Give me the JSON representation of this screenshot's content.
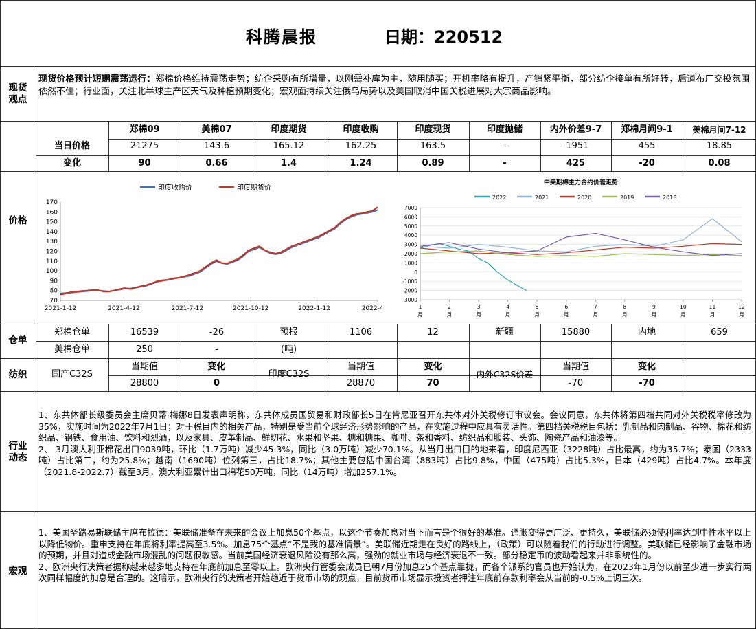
{
  "header": {
    "title": "科腾晨报",
    "date_label": "日期：220512"
  },
  "spot": {
    "label": [
      "现货",
      "观点"
    ],
    "lead": "现货价格预计短期震荡运行：",
    "text": "郑棉价格维持震荡走势；纺企采购有所增量，以刚需补库为主，随用随买；开机率略有提升，产销紧平衡，部分纺企接单有所好转，后道布厂交投氛围依然不佳；行业面，关注北半球主产区天气及种植预期变化；宏观面持续关注俄乌局势以及美国取消中国关税进展对大宗商品影响。"
  },
  "price": {
    "label": "价格",
    "headers": [
      "郑棉09",
      "美棉07",
      "印度期货",
      "印度收购",
      "印度现货",
      "印度抛储",
      "内外价差9-7",
      "郑棉月间9-1",
      "美棉月间7-12"
    ],
    "rows": [
      {
        "name": "当日价格",
        "values": [
          "21275",
          "143.6",
          "165.12",
          "162.25",
          "163.5",
          "-",
          "-1951",
          "455",
          "18.85"
        ]
      },
      {
        "name": "变化",
        "values": [
          "90",
          "0.66",
          "1.4",
          "1.24",
          "0.89",
          "-",
          "425",
          "-20",
          "0.08"
        ]
      }
    ]
  },
  "warehouse": {
    "label": "仓单",
    "row1": [
      "郑棉仓单",
      "16539",
      "-26",
      "预报",
      "1106",
      "12",
      "新疆",
      "15880",
      "内地",
      "659"
    ],
    "row2": [
      "美棉仓单",
      "250",
      "-",
      "(吨)"
    ]
  },
  "yarn": {
    "label": "纺织",
    "h_current": "当期值",
    "h_change": "变化",
    "items": [
      {
        "name": "国产C32S",
        "current": "28800",
        "change": "0"
      },
      {
        "name": "印度C32S",
        "current": "28870",
        "change": "70"
      },
      {
        "name": "内外C32S价差",
        "current": "-70",
        "change": "-70"
      }
    ]
  },
  "industry": {
    "label": [
      "行业",
      "动态"
    ],
    "p1": "1、东共体部长级委员会主席贝蒂·梅娜8日发表声明称，东共体成员国贸易和财政部长5日在肯尼亚召开东共体对外关税修订审议会。会议同意，东共体将第四档共同对外关税税率修改为35%，实施时间为2022年7月1日；对于税目内的相关产品，特别是受当前全球经济形势影响的产品，在实施过程中应具有灵活性。第四档关税税目包括：乳制品和肉制品、谷物、棉花和纺织品、钢铁、食用油、饮料和烈酒，以及家具、皮革制品、鲜切花、水果和坚果、糖和糖果、咖啡、茶和香料、纺织品和服装、头饰、陶瓷产品和油漆等。",
    "p2": "2、 3月澳大利亚棉花出口9039吨，环比（1.7万吨）减少45.3%，同比（3.0万吨）减少70.1%。从当月出口目的地来看，印度尼西亚（3228吨）占比最高，约为35.7%；泰国（2333吨）占比第二，约为25.8%；越南（1690吨）位列第三，占比18.7%；其他主要包括中国台湾（883吨）占比9.8%，中国（475吨）占比5.3%，日本（429吨）占比4.7%。本年度（2021.8-2022.7）截至3月，澳大利亚累计出口棉花50万吨，同比（14万吨）增加257.1%。"
  },
  "macro": {
    "label": "宏观",
    "p1": "1、美国圣路易斯联储主席布拉德：美联储准备在未来的会议上加息50个基点，以这个节奏加息对当下而言是个很好的基准。通胀变得更广泛、更持久，美联储必须使利率达到中性水平以上以降低物价。重申支持在年底将利率提高至3.5%。加息75个基点“不是我的基准情景”。美联储近期走在良好的路线上，（政策）可以随着我们的行动进行调整。美联储已经影响了金融市场的预期，并且对造成金融市场混乱的问题很敏感。当前美国经济衰退风险没有那么高，强劲的就业市场与经济衰退不一致。部分稳定币的波动看起来并非系统性的。",
    "p2": "2、欧洲央行决策者据称越来越多地支持在年底前加息至零以上。欧洲央行管委会成员已朝7月份加息25个基点靠拢，而各个派系的官员也开始认为，在2023年1月份以前至少进一步实行两次同样幅度的加息是合理的。这暗示，欧洲央行的决策者开始趋近于货币市场的观点，目前货币市场显示投资者押注年底前存款利率会从当前的-0.5%上调三次。"
  },
  "chart_data": [
    {
      "type": "line",
      "title": "",
      "legend_position": "top",
      "ylim": [
        70,
        170
      ],
      "yticks": [
        70,
        80,
        90,
        100,
        110,
        120,
        130,
        140,
        150,
        160,
        170
      ],
      "xticks": [
        "2021-1-12",
        "2021-4-12",
        "2021-7-12",
        "2021-10-12",
        "2022-1-12",
        "2022-4-12"
      ],
      "grid": false,
      "series": [
        {
          "name": "印度收购价",
          "color": "#3f6fb5",
          "values": [
            77,
            77.5,
            78,
            78.5,
            79,
            79.5,
            80,
            80,
            79.5,
            79,
            80,
            81,
            82,
            82,
            83,
            84,
            85,
            87,
            89,
            90,
            91,
            92,
            93,
            94,
            95,
            97,
            99,
            103,
            107,
            110,
            108,
            107,
            109,
            111,
            115,
            120,
            122,
            124,
            121,
            118,
            117,
            118,
            121,
            124,
            126,
            128,
            130,
            132,
            134,
            137,
            140,
            143,
            148,
            152,
            155,
            157,
            158,
            159,
            160,
            162
          ]
        },
        {
          "name": "印度期货价",
          "color": "#c0392b",
          "values": [
            76,
            77,
            78.5,
            79,
            79.5,
            80,
            80.5,
            80.5,
            79,
            79,
            80,
            81.5,
            82.5,
            81.5,
            83,
            84.5,
            85.5,
            87.5,
            89.5,
            90.5,
            91,
            92.5,
            93,
            94.5,
            96,
            98,
            100,
            104,
            108,
            111,
            108,
            107.5,
            110,
            112,
            116,
            121,
            123,
            125,
            121,
            119,
            117.5,
            119,
            122,
            125,
            127,
            129,
            131,
            133,
            135,
            138,
            141,
            144,
            149,
            153,
            156,
            158,
            158.5,
            160,
            161,
            165
          ]
        }
      ]
    },
    {
      "type": "line",
      "title": "中美期棉主力合约价差走势",
      "legend_position": "top",
      "ylim": [
        -3000,
        7000
      ],
      "yticks": [
        -3000,
        -2000,
        -1000,
        0,
        1000,
        2000,
        3000,
        4000,
        5000,
        6000,
        7000
      ],
      "xticks": [
        "1月",
        "2月",
        "3月",
        "4月",
        "5月",
        "6月",
        "7月",
        "8月",
        "9月",
        "10月",
        "11月",
        "12月"
      ],
      "grid": true,
      "series": [
        {
          "name": "2022",
          "color": "#2aa6b5",
          "values": [
            2600,
            2900,
            3100,
            2800,
            2500,
            2300,
            1500,
            1000,
            0,
            -800,
            -1400,
            -2000
          ]
        },
        {
          "name": "2021",
          "color": "#8fb3de",
          "values": [
            2800,
            2600,
            3000,
            2700,
            2300,
            2200,
            2800,
            3000,
            2800,
            3500,
            5800,
            3300
          ]
        },
        {
          "name": "2020",
          "color": "#c0392b",
          "values": [
            2600,
            2300,
            2000,
            2100,
            1900,
            2100,
            2400,
            2700,
            2600,
            2800,
            3100,
            3000
          ]
        },
        {
          "name": "2019",
          "color": "#9bbb59",
          "values": [
            2000,
            2200,
            2300,
            1900,
            1700,
            1800,
            1700,
            2000,
            1900,
            1800,
            1900,
            1800
          ]
        },
        {
          "name": "2018",
          "color": "#7a5ea8",
          "values": [
            2800,
            3200,
            2500,
            2100,
            2300,
            3800,
            4200,
            3500,
            2700,
            2200,
            1800,
            2000
          ]
        }
      ]
    }
  ]
}
